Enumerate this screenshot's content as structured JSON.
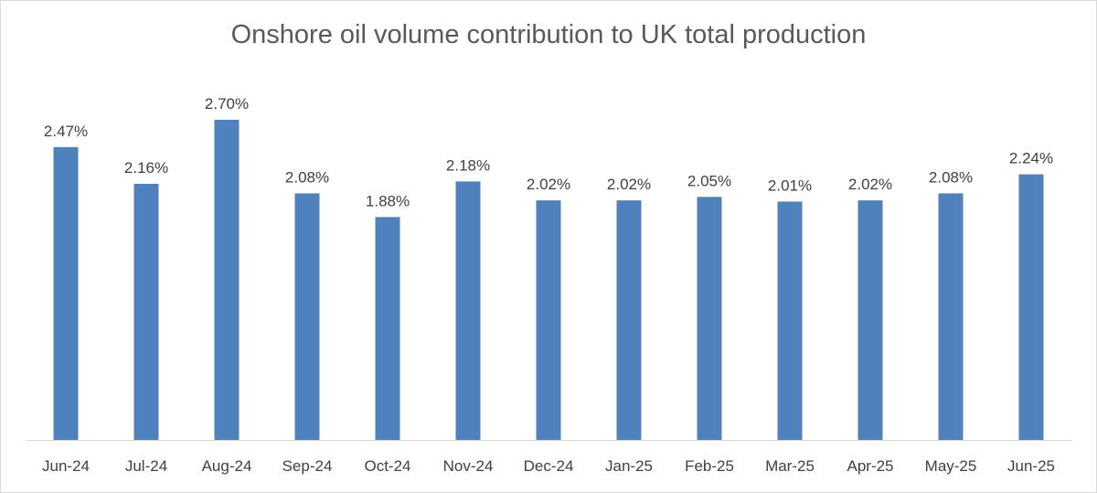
{
  "chart_data": {
    "type": "bar",
    "title": "Onshore oil volume contribution to UK total production",
    "categories": [
      "Jun-24",
      "Jul-24",
      "Aug-24",
      "Sep-24",
      "Oct-24",
      "Nov-24",
      "Dec-24",
      "Jan-25",
      "Feb-25",
      "Mar-25",
      "Apr-25",
      "May-25",
      "Jun-25"
    ],
    "values": [
      2.47,
      2.16,
      2.7,
      2.08,
      1.88,
      2.18,
      2.02,
      2.02,
      2.05,
      2.01,
      2.02,
      2.08,
      2.24
    ],
    "data_labels": [
      "2.47%",
      "2.16%",
      "2.70%",
      "2.08%",
      "1.88%",
      "2.18%",
      "2.02%",
      "2.02%",
      "2.05%",
      "2.01%",
      "2.02%",
      "2.08%",
      "2.24%"
    ],
    "ylim": [
      0,
      2.7
    ],
    "xlabel": "",
    "ylabel": "",
    "grid": false,
    "legend": "none",
    "color": "#4f81bd"
  }
}
